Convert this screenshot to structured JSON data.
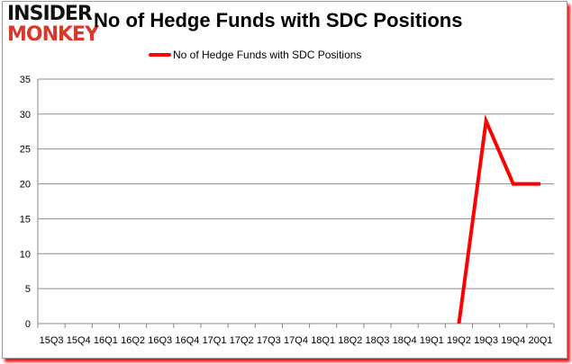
{
  "logo": {
    "line1": "INSIDER",
    "line2": "MONKEY"
  },
  "chart_data": {
    "type": "line",
    "title": "No of Hedge Funds with SDC Positions",
    "xlabel": "",
    "ylabel": "",
    "categories": [
      "15Q3",
      "15Q4",
      "16Q1",
      "16Q2",
      "16Q3",
      "16Q4",
      "17Q1",
      "17Q2",
      "17Q3",
      "17Q4",
      "18Q1",
      "18Q2",
      "18Q3",
      "18Q4",
      "19Q1",
      "19Q2",
      "19Q3",
      "19Q4",
      "20Q1"
    ],
    "series": [
      {
        "name": "No of Hedge Funds with SDC Positions",
        "color": "#ff0000",
        "values": [
          null,
          null,
          null,
          null,
          null,
          null,
          null,
          null,
          null,
          null,
          null,
          null,
          null,
          null,
          null,
          0,
          29,
          20,
          20
        ]
      }
    ],
    "ylim": [
      0,
      35
    ],
    "yticks": [
      0,
      5,
      10,
      15,
      20,
      25,
      30,
      35
    ],
    "grid": true,
    "legend": "top-center"
  }
}
